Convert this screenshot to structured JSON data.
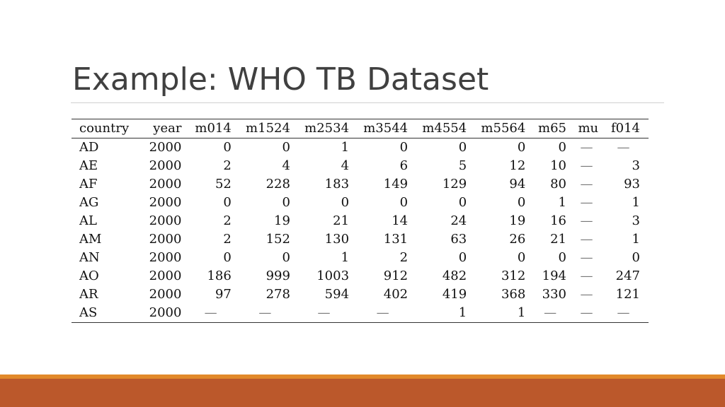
{
  "slide": {
    "title": "Example: WHO TB Dataset"
  },
  "table": {
    "columns": [
      "country",
      "year",
      "m014",
      "m1524",
      "m2534",
      "m3544",
      "m4554",
      "m5564",
      "m65",
      "mu",
      "f014"
    ],
    "rows": [
      [
        "AD",
        "2000",
        "0",
        "0",
        "1",
        "0",
        "0",
        "0",
        "0",
        "—",
        "—"
      ],
      [
        "AE",
        "2000",
        "2",
        "4",
        "4",
        "6",
        "5",
        "12",
        "10",
        "—",
        "3"
      ],
      [
        "AF",
        "2000",
        "52",
        "228",
        "183",
        "149",
        "129",
        "94",
        "80",
        "—",
        "93"
      ],
      [
        "AG",
        "2000",
        "0",
        "0",
        "0",
        "0",
        "0",
        "0",
        "1",
        "—",
        "1"
      ],
      [
        "AL",
        "2000",
        "2",
        "19",
        "21",
        "14",
        "24",
        "19",
        "16",
        "—",
        "3"
      ],
      [
        "AM",
        "2000",
        "2",
        "152",
        "130",
        "131",
        "63",
        "26",
        "21",
        "—",
        "1"
      ],
      [
        "AN",
        "2000",
        "0",
        "0",
        "1",
        "2",
        "0",
        "0",
        "0",
        "—",
        "0"
      ],
      [
        "AO",
        "2000",
        "186",
        "999",
        "1003",
        "912",
        "482",
        "312",
        "194",
        "—",
        "247"
      ],
      [
        "AR",
        "2000",
        "97",
        "278",
        "594",
        "402",
        "419",
        "368",
        "330",
        "—",
        "121"
      ],
      [
        "AS",
        "2000",
        "—",
        "—",
        "—",
        "—",
        "1",
        "1",
        "—",
        "—",
        "—"
      ]
    ]
  },
  "theme": {
    "accent_orange": "#e2892a",
    "accent_rust": "#bb582b",
    "title_color": "#404040"
  }
}
